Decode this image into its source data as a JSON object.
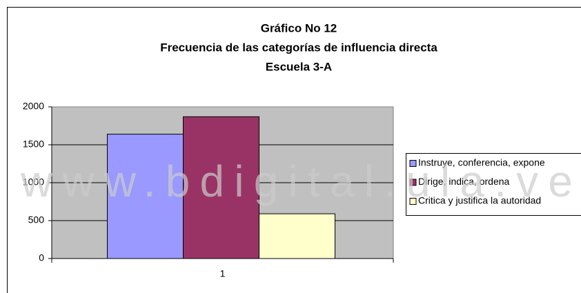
{
  "chart_data": {
    "type": "bar",
    "title": [
      "Gráfico No 12",
      "Frecuencia de las categorías de influencia directa",
      "Escuela 3-A"
    ],
    "categories": [
      "1"
    ],
    "series": [
      {
        "name": "Instruye, conferencia, expone",
        "color": "#9999ff",
        "values": [
          1640
        ]
      },
      {
        "name": "Dirige, indica, ordena",
        "color": "#993366",
        "values": [
          1870
        ]
      },
      {
        "name": "Critica y justifica la autoridad",
        "color": "#ffffcc",
        "values": [
          590
        ]
      }
    ],
    "ylim": [
      0,
      2000
    ],
    "yticks": [
      0,
      500,
      1000,
      1500,
      2000
    ],
    "grid": true,
    "legend": "right",
    "watermark": "www.bdigital.ula.ve"
  }
}
